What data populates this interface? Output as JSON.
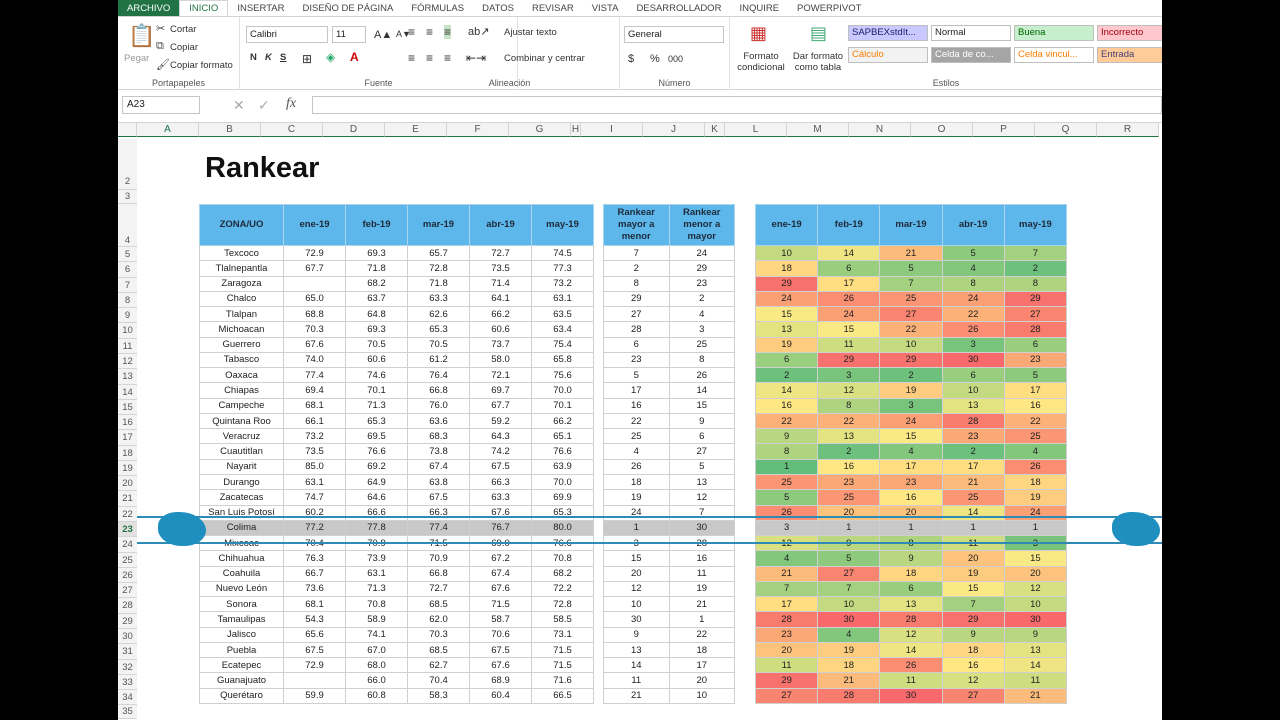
{
  "ribbon": {
    "tabs": [
      "ARCHIVO",
      "INICIO",
      "INSERTAR",
      "DISEÑO DE PÁGINA",
      "FÓRMULAS",
      "DATOS",
      "REVISAR",
      "VISTA",
      "DESARROLLADOR",
      "INQUIRE",
      "POWERPIVOT"
    ],
    "active_tab": "INICIO",
    "clipboard": {
      "paste": "Pegar",
      "cut": "Cortar",
      "copy": "Copiar",
      "format_painter": "Copiar formato",
      "label": "Portapapeles"
    },
    "font": {
      "name": "Calibri",
      "size": "11",
      "bold": "N",
      "italic": "K",
      "underline": "S",
      "label": "Fuente"
    },
    "alignment": {
      "wrap": "Ajustar texto",
      "merge": "Combinar y centrar",
      "label": "Alineación"
    },
    "number": {
      "format": "General",
      "currency": "$",
      "percent": "%",
      "thousands": "000",
      "label": "Número"
    },
    "styles_btns": {
      "cond": "Formato condicional",
      "table": "Dar formato como tabla",
      "label": "Estilos"
    },
    "styles": [
      {
        "text": "SAPBEXstdIt...",
        "bg": "#c9c9ff",
        "fg": "#1a1a6a"
      },
      {
        "text": "Normal",
        "bg": "#ffffff",
        "fg": "#222222"
      },
      {
        "text": "Buena",
        "bg": "#c6efce",
        "fg": "#006100"
      },
      {
        "text": "Incorrecto",
        "bg": "#ffc7ce",
        "fg": "#9c0006"
      },
      {
        "text": "Cálculo",
        "bg": "#f2f2f2",
        "fg": "#fa7d00"
      },
      {
        "text": "Celda de co...",
        "bg": "#a5a5a5",
        "fg": "#ffffff"
      },
      {
        "text": "Celda vincul...",
        "bg": "#ffffff",
        "fg": "#fa7d00"
      },
      {
        "text": "Entrada",
        "bg": "#ffcc99",
        "fg": "#3f3f76"
      }
    ]
  },
  "formula_bar": {
    "name_box": "A23",
    "fx": "fx",
    "value": ""
  },
  "columns": [
    "A",
    "B",
    "C",
    "D",
    "E",
    "F",
    "G",
    "H",
    "I",
    "J",
    "K",
    "L",
    "M",
    "N",
    "O",
    "P",
    "Q",
    "R"
  ],
  "rows_start": [
    "2",
    "3",
    "4"
  ],
  "sheet": {
    "title": "Rankear",
    "headers": [
      "ZONA/UO",
      "ene-19",
      "feb-19",
      "mar-19",
      "abr-19",
      "may-19"
    ],
    "rank_headers": [
      "Rankear mayor a menor",
      "Rankear menor a mayor"
    ],
    "heat_headers": [
      "ene-19",
      "feb-19",
      "mar-19",
      "abr-19",
      "may-19"
    ],
    "selected_row": 23,
    "rows": [
      {
        "r": "5",
        "zona": "Texcoco",
        "v": [
          "72.9",
          "69.3",
          "65.7",
          "72.7",
          "74.5"
        ],
        "rk": [
          "7",
          "24"
        ],
        "h": [
          10,
          14,
          21,
          5,
          7
        ]
      },
      {
        "r": "6",
        "zona": "Tlalnepantla",
        "v": [
          "67.7",
          "71.8",
          "72.8",
          "73.5",
          "77.3"
        ],
        "rk": [
          "2",
          "29"
        ],
        "h": [
          18,
          6,
          5,
          4,
          2
        ]
      },
      {
        "r": "7",
        "zona": "Zaragoza",
        "v": [
          "",
          "68.2",
          "71.8",
          "71.4",
          "73.2"
        ],
        "rk": [
          "8",
          "23"
        ],
        "h": [
          29,
          17,
          7,
          8,
          8
        ]
      },
      {
        "r": "8",
        "zona": "Chalco",
        "v": [
          "65.0",
          "63.7",
          "63.3",
          "64.1",
          "63.1"
        ],
        "rk": [
          "29",
          "2"
        ],
        "h": [
          24,
          26,
          25,
          24,
          29
        ]
      },
      {
        "r": "9",
        "zona": "Tlalpan",
        "v": [
          "68.8",
          "64.8",
          "62.6",
          "66.2",
          "63.5"
        ],
        "rk": [
          "27",
          "4"
        ],
        "h": [
          15,
          24,
          27,
          22,
          27
        ]
      },
      {
        "r": "10",
        "zona": "Michoacan",
        "v": [
          "70.3",
          "69.3",
          "65.3",
          "60.6",
          "63.4"
        ],
        "rk": [
          "28",
          "3"
        ],
        "h": [
          13,
          15,
          22,
          26,
          28
        ]
      },
      {
        "r": "11",
        "zona": "Guerrero",
        "v": [
          "67.6",
          "70.5",
          "70.5",
          "73.7",
          "75.4"
        ],
        "rk": [
          "6",
          "25"
        ],
        "h": [
          19,
          11,
          10,
          3,
          6
        ]
      },
      {
        "r": "12",
        "zona": "Tabasco",
        "v": [
          "74.0",
          "60.6",
          "61.2",
          "58.0",
          "65.8"
        ],
        "rk": [
          "23",
          "8"
        ],
        "h": [
          6,
          29,
          29,
          30,
          23
        ]
      },
      {
        "r": "13",
        "zona": "Oaxaca",
        "v": [
          "77.4",
          "74.6",
          "76.4",
          "72.1",
          "75.6"
        ],
        "rk": [
          "5",
          "26"
        ],
        "h": [
          2,
          3,
          2,
          6,
          5
        ]
      },
      {
        "r": "14",
        "zona": "Chiapas",
        "v": [
          "69.4",
          "70.1",
          "66.8",
          "69.7",
          "70.0"
        ],
        "rk": [
          "17",
          "14"
        ],
        "h": [
          14,
          12,
          19,
          10,
          17
        ]
      },
      {
        "r": "15",
        "zona": "Campeche",
        "v": [
          "68.1",
          "71.3",
          "76.0",
          "67.7",
          "70.1"
        ],
        "rk": [
          "16",
          "15"
        ],
        "h": [
          16,
          8,
          3,
          13,
          16
        ]
      },
      {
        "r": "16",
        "zona": "Quintana Roo",
        "v": [
          "66.1",
          "65.3",
          "63.6",
          "59.2",
          "66.2"
        ],
        "rk": [
          "22",
          "9"
        ],
        "h": [
          22,
          22,
          24,
          28,
          22
        ]
      },
      {
        "r": "17",
        "zona": "Veracruz",
        "v": [
          "73.2",
          "69.5",
          "68.3",
          "64.3",
          "65.1"
        ],
        "rk": [
          "25",
          "6"
        ],
        "h": [
          9,
          13,
          15,
          23,
          25
        ]
      },
      {
        "r": "18",
        "zona": "Cuautitlan",
        "v": [
          "73.5",
          "76.6",
          "73.8",
          "74.2",
          "76.6"
        ],
        "rk": [
          "4",
          "27"
        ],
        "h": [
          8,
          2,
          4,
          2,
          4
        ]
      },
      {
        "r": "19",
        "zona": "Nayarit",
        "v": [
          "85.0",
          "69.2",
          "67.4",
          "67.5",
          "63.9"
        ],
        "rk": [
          "26",
          "5"
        ],
        "h": [
          1,
          16,
          17,
          17,
          26
        ]
      },
      {
        "r": "20",
        "zona": "Durango",
        "v": [
          "63.1",
          "64.9",
          "63.8",
          "66.3",
          "70.0"
        ],
        "rk": [
          "18",
          "13"
        ],
        "h": [
          25,
          23,
          23,
          21,
          18
        ]
      },
      {
        "r": "21",
        "zona": "Zacatecas",
        "v": [
          "74.7",
          "64.6",
          "67.5",
          "63.3",
          "69.9"
        ],
        "rk": [
          "19",
          "12"
        ],
        "h": [
          5,
          25,
          16,
          25,
          19
        ]
      },
      {
        "r": "22",
        "zona": "San Luis Potosí",
        "v": [
          "60.2",
          "66.6",
          "66.3",
          "67.6",
          "65.3"
        ],
        "rk": [
          "24",
          "7"
        ],
        "h": [
          26,
          20,
          20,
          14,
          24
        ]
      },
      {
        "r": "23",
        "zona": "Colima",
        "v": [
          "77.2",
          "77.8",
          "77.4",
          "76.7",
          "80.0"
        ],
        "rk": [
          "1",
          "30"
        ],
        "h": [
          3,
          1,
          1,
          1,
          1
        ]
      },
      {
        "r": "24",
        "zona": "Mixcoac",
        "v": [
          "70.4",
          "70.9",
          "71.5",
          "69.0",
          "76.6"
        ],
        "rk": [
          "3",
          "28"
        ],
        "h": [
          12,
          9,
          8,
          11,
          3
        ]
      },
      {
        "r": "25",
        "zona": "Chihuahua",
        "v": [
          "76.3",
          "73.9",
          "70.9",
          "67.2",
          "70.8"
        ],
        "rk": [
          "15",
          "16"
        ],
        "h": [
          4,
          5,
          9,
          20,
          15
        ]
      },
      {
        "r": "26",
        "zona": "Coahuila",
        "v": [
          "66.7",
          "63.1",
          "66.8",
          "67.4",
          "68.2"
        ],
        "rk": [
          "20",
          "11"
        ],
        "h": [
          21,
          27,
          18,
          19,
          20
        ]
      },
      {
        "r": "27",
        "zona": "Nuevo León",
        "v": [
          "73.6",
          "71.3",
          "72.7",
          "67.6",
          "72.2"
        ],
        "rk": [
          "12",
          "19"
        ],
        "h": [
          7,
          7,
          6,
          15,
          12
        ]
      },
      {
        "r": "28",
        "zona": "Sonora",
        "v": [
          "68.1",
          "70.8",
          "68.5",
          "71.5",
          "72.8"
        ],
        "rk": [
          "10",
          "21"
        ],
        "h": [
          17,
          10,
          13,
          7,
          10
        ]
      },
      {
        "r": "29",
        "zona": "Tamaulipas",
        "v": [
          "54.3",
          "58.9",
          "62.0",
          "58.7",
          "58.5"
        ],
        "rk": [
          "30",
          "1"
        ],
        "h": [
          28,
          30,
          28,
          29,
          30
        ]
      },
      {
        "r": "30",
        "zona": "Jalisco",
        "v": [
          "65.6",
          "74.1",
          "70.3",
          "70.6",
          "73.1"
        ],
        "rk": [
          "9",
          "22"
        ],
        "h": [
          23,
          4,
          12,
          9,
          9
        ]
      },
      {
        "r": "31",
        "zona": "Puebla",
        "v": [
          "67.5",
          "67.0",
          "68.5",
          "67.5",
          "71.5"
        ],
        "rk": [
          "13",
          "18"
        ],
        "h": [
          20,
          19,
          14,
          18,
          13
        ]
      },
      {
        "r": "32",
        "zona": "Ecatepec",
        "v": [
          "72.9",
          "68.0",
          "62.7",
          "67.6",
          "71.5"
        ],
        "rk": [
          "14",
          "17"
        ],
        "h": [
          11,
          18,
          26,
          16,
          14
        ]
      },
      {
        "r": "33",
        "zona": "Guanajuato",
        "v": [
          "",
          "66.0",
          "70.4",
          "68.9",
          "71.6"
        ],
        "rk": [
          "11",
          "20"
        ],
        "h": [
          29,
          21,
          11,
          12,
          11
        ]
      },
      {
        "r": "34",
        "zona": "Querétaro",
        "v": [
          "59.9",
          "60.8",
          "58.3",
          "60.4",
          "66.5"
        ],
        "rk": [
          "21",
          "10"
        ],
        "h": [
          27,
          28,
          30,
          27,
          21
        ]
      }
    ],
    "last_row": "35"
  }
}
